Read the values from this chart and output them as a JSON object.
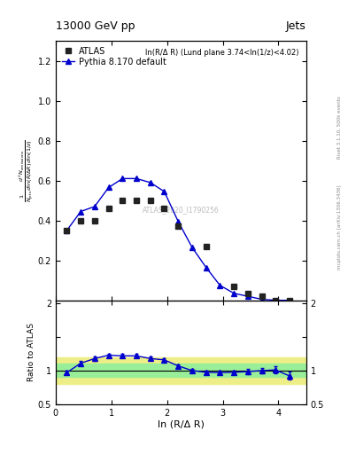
{
  "title": "13000 GeV pp",
  "title_right": "Jets",
  "panel_title": "ln(R/Δ R) (Lund plane 3.74<ln(1/z)<4.02)",
  "watermark": "ATLAS_2020_I1790256",
  "ylabel_main": "$\\frac{1}{N_{\\mathrm{jets}}}\\frac{d^2 N_{\\mathrm{emissions}}}{d\\ln(R/\\Delta R)\\,d\\ln(1/z)}$",
  "xlabel": "ln (R/Δ R)",
  "ylabel_ratio": "Ratio to ATLAS",
  "right_label": "Rivet 3.1.10, 500k events",
  "right_label2": "mcplots.cern.ch [arXiv:1306.3436]",
  "xlim": [
    0,
    4.5
  ],
  "ylim_main": [
    0,
    1.3
  ],
  "ylim_ratio": [
    0.5,
    2.05
  ],
  "atlas_x": [
    0.2,
    0.45,
    0.7,
    0.95,
    1.2,
    1.45,
    1.7,
    1.95,
    2.2,
    2.7,
    3.2,
    3.45,
    3.7,
    3.95,
    4.2
  ],
  "atlas_y": [
    0.35,
    0.4,
    0.4,
    0.46,
    0.5,
    0.5,
    0.5,
    0.46,
    0.37,
    0.27,
    0.07,
    0.035,
    0.02,
    0.0,
    0.0
  ],
  "pythia_x": [
    0.2,
    0.45,
    0.7,
    0.95,
    1.2,
    1.45,
    1.7,
    1.95,
    2.2,
    2.45,
    2.7,
    2.95,
    3.2,
    3.45,
    3.7,
    3.95,
    4.2
  ],
  "pythia_y": [
    0.35,
    0.445,
    0.47,
    0.565,
    0.61,
    0.61,
    0.59,
    0.545,
    0.395,
    0.265,
    0.165,
    0.075,
    0.035,
    0.02,
    0.005,
    0.0,
    0.0
  ],
  "ratio_x": [
    0.2,
    0.45,
    0.7,
    0.95,
    1.2,
    1.45,
    1.7,
    1.95,
    2.2,
    2.45,
    2.7,
    2.95,
    3.2,
    3.45,
    3.7,
    3.95,
    4.2
  ],
  "ratio_y": [
    0.97,
    1.11,
    1.18,
    1.23,
    1.22,
    1.22,
    1.18,
    1.16,
    1.07,
    1.0,
    0.975,
    0.97,
    0.975,
    0.985,
    1.0,
    1.01,
    0.92
  ],
  "ratio_yerr": [
    0.03,
    0.03,
    0.03,
    0.025,
    0.025,
    0.025,
    0.025,
    0.025,
    0.025,
    0.025,
    0.025,
    0.03,
    0.03,
    0.04,
    0.04,
    0.05,
    0.06
  ],
  "green_band_lo": 0.9,
  "green_band_hi": 1.1,
  "yellow_band_lo": 0.8,
  "yellow_band_hi": 1.2,
  "line_color": "#0000CC",
  "marker_color": "#222222",
  "green_color": "#99EE99",
  "yellow_color": "#EEEE88",
  "atlas_marker": "s",
  "pythia_marker": "^",
  "marker_size": 4,
  "legend_fontsize": 7,
  "tick_labelsize": 7,
  "title_fontsize": 9
}
